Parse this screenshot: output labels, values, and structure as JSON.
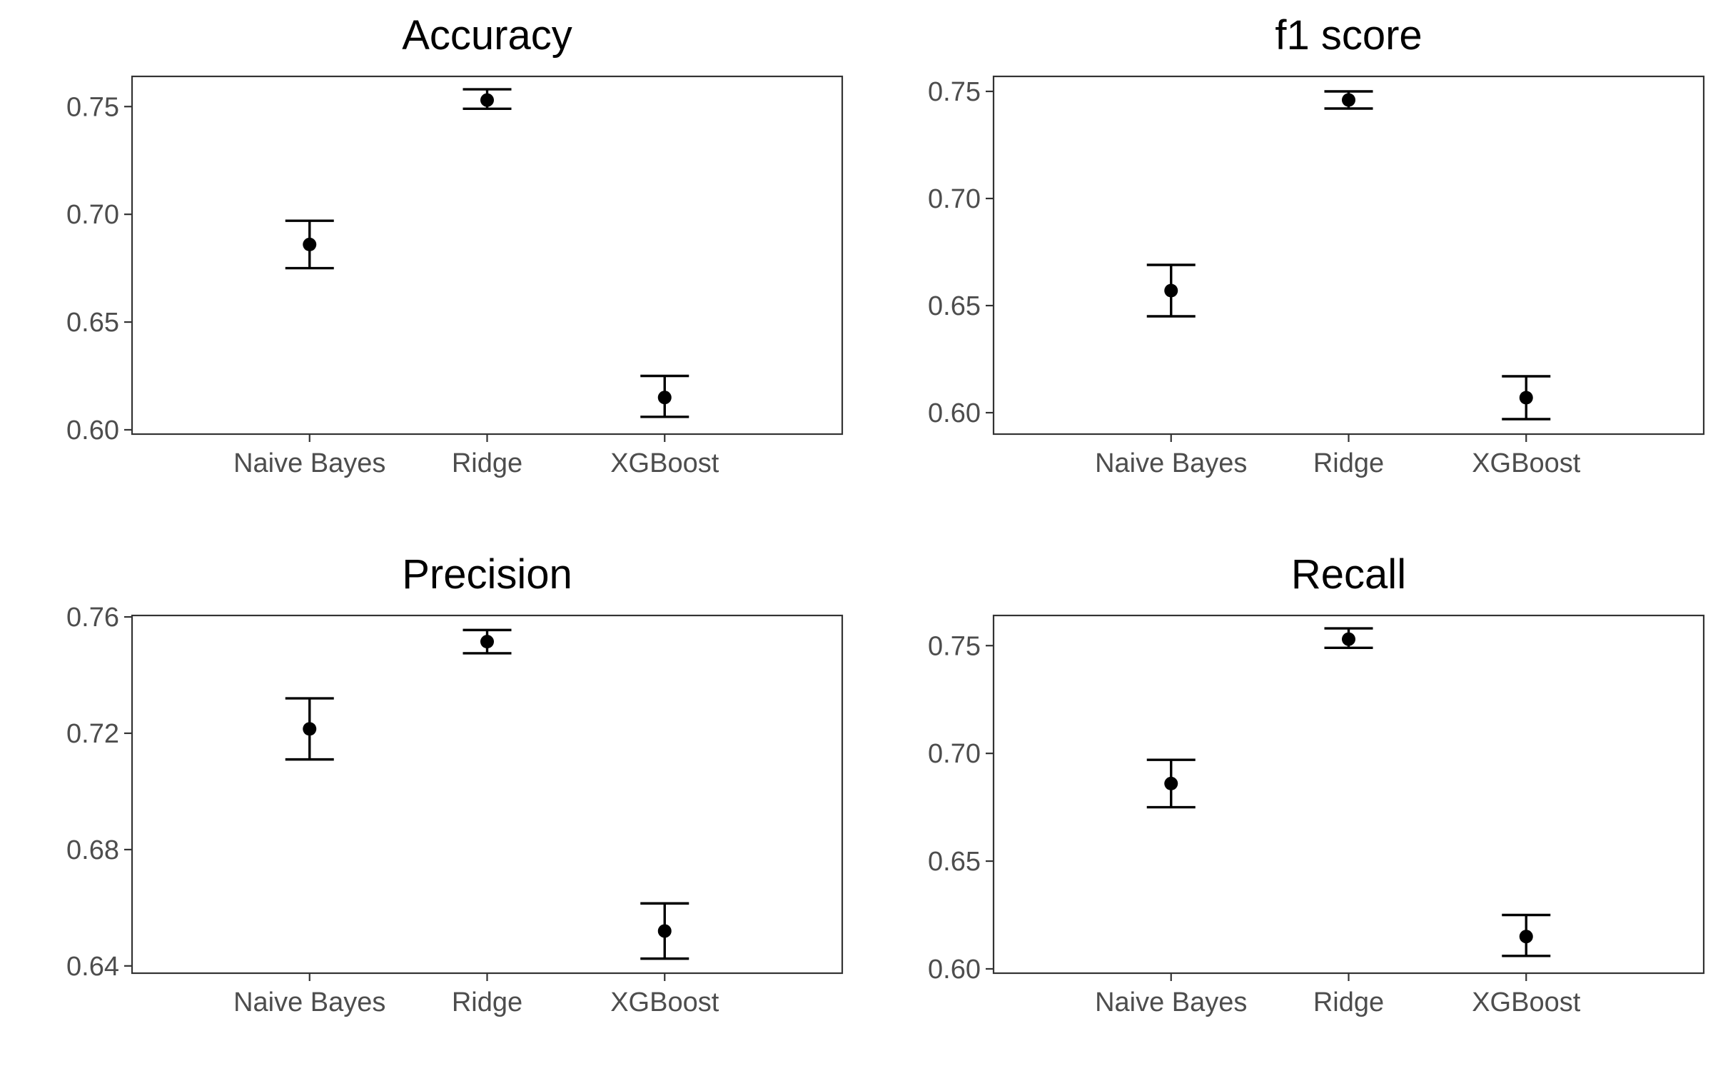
{
  "chart_data": [
    {
      "type": "scatter",
      "title": "Accuracy",
      "categories": [
        "Naive Bayes",
        "Ridge",
        "XGBoost"
      ],
      "values": [
        0.686,
        0.753,
        0.615
      ],
      "lower": [
        0.675,
        0.749,
        0.606
      ],
      "upper": [
        0.697,
        0.758,
        0.625
      ],
      "ylim": [
        0.598,
        0.764
      ],
      "yticks": [
        0.6,
        0.65,
        0.7,
        0.75
      ],
      "ytick_labels": [
        "0.60",
        "0.65",
        "0.70",
        "0.75"
      ],
      "xlabel": "",
      "ylabel": "",
      "grid": false,
      "legend": "none"
    },
    {
      "type": "scatter",
      "title": "f1 score",
      "categories": [
        "Naive Bayes",
        "Ridge",
        "XGBoost"
      ],
      "values": [
        0.657,
        0.746,
        0.607
      ],
      "lower": [
        0.645,
        0.742,
        0.597
      ],
      "upper": [
        0.669,
        0.75,
        0.617
      ],
      "ylim": [
        0.59,
        0.757
      ],
      "yticks": [
        0.6,
        0.65,
        0.7,
        0.75
      ],
      "ytick_labels": [
        "0.60",
        "0.65",
        "0.70",
        "0.75"
      ],
      "xlabel": "",
      "ylabel": "",
      "grid": false,
      "legend": "none"
    },
    {
      "type": "scatter",
      "title": "Precision",
      "categories": [
        "Naive Bayes",
        "Ridge",
        "XGBoost"
      ],
      "values": [
        0.7215,
        0.7515,
        0.652
      ],
      "lower": [
        0.711,
        0.7475,
        0.6425
      ],
      "upper": [
        0.732,
        0.7555,
        0.6615
      ],
      "ylim": [
        0.6375,
        0.7605
      ],
      "yticks": [
        0.64,
        0.68,
        0.72,
        0.76
      ],
      "ytick_labels": [
        "0.64",
        "0.68",
        "0.72",
        "0.76"
      ],
      "xlabel": "",
      "ylabel": "",
      "grid": false,
      "legend": "none"
    },
    {
      "type": "scatter",
      "title": "Recall",
      "categories": [
        "Naive Bayes",
        "Ridge",
        "XGBoost"
      ],
      "values": [
        0.686,
        0.753,
        0.615
      ],
      "lower": [
        0.675,
        0.749,
        0.606
      ],
      "upper": [
        0.697,
        0.758,
        0.625
      ],
      "ylim": [
        0.598,
        0.764
      ],
      "yticks": [
        0.6,
        0.65,
        0.7,
        0.75
      ],
      "ytick_labels": [
        "0.60",
        "0.65",
        "0.70",
        "0.75"
      ],
      "xlabel": "",
      "ylabel": "",
      "grid": false,
      "legend": "none"
    }
  ]
}
